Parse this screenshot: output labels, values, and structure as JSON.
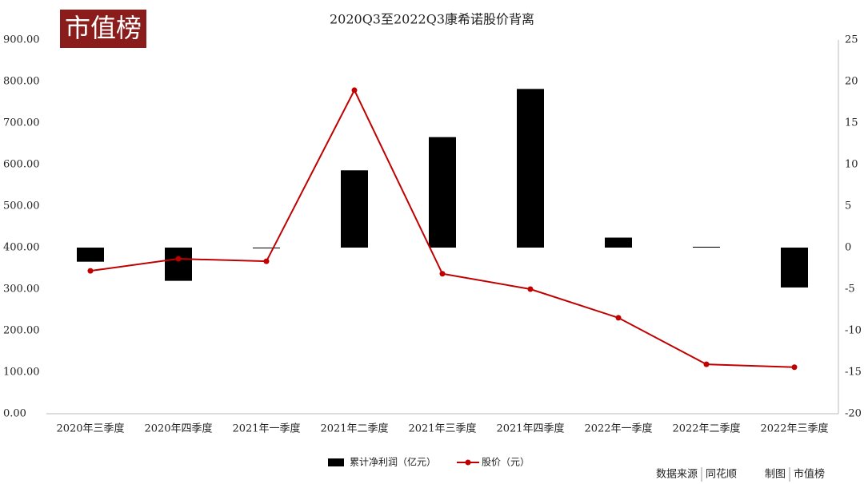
{
  "chart_data": {
    "type": "bar",
    "title": "2020Q3至2022Q3康希诺股价背离",
    "categories": [
      "2020年三季度",
      "2020年四季度",
      "2021年一季度",
      "2021年二季度",
      "2021年三季度",
      "2021年四季度",
      "2022年一季度",
      "2022年二季度",
      "2022年三季度"
    ],
    "series": [
      {
        "name": "累计净利润（亿元）",
        "type": "bar",
        "axis": "y2",
        "color": "#000000",
        "values": [
          -1.7,
          -4.0,
          0,
          9.3,
          13.3,
          19.1,
          1.2,
          0.1,
          -4.8
        ]
      },
      {
        "name": "股价（元）",
        "type": "line",
        "color": "#c00000",
        "values": [
          344,
          373,
          367,
          779,
          337,
          300,
          231,
          119,
          112
        ]
      }
    ],
    "ylim": [
      0,
      900
    ],
    "yticks": [
      {
        "value": 0,
        "label": "0.00"
      },
      {
        "value": 100,
        "label": "100.00"
      },
      {
        "value": 200,
        "label": "200.00"
      },
      {
        "value": 300,
        "label": "300.00"
      },
      {
        "value": 400,
        "label": "400.00"
      },
      {
        "value": 500,
        "label": "500.00"
      },
      {
        "value": 600,
        "label": "600.00"
      },
      {
        "value": 700,
        "label": "700.00"
      },
      {
        "value": 800,
        "label": "800.00"
      },
      {
        "value": 900,
        "label": "900.00"
      }
    ],
    "y2lim": [
      -20,
      25
    ],
    "y2ticks": [
      -20,
      -15,
      -10,
      -5,
      0,
      5,
      10,
      15,
      20,
      25
    ],
    "legend": "bottom",
    "logo": "市值榜",
    "source": [
      "数据来源",
      "同花顺"
    ],
    "credit": [
      "制图",
      "市值榜"
    ]
  }
}
